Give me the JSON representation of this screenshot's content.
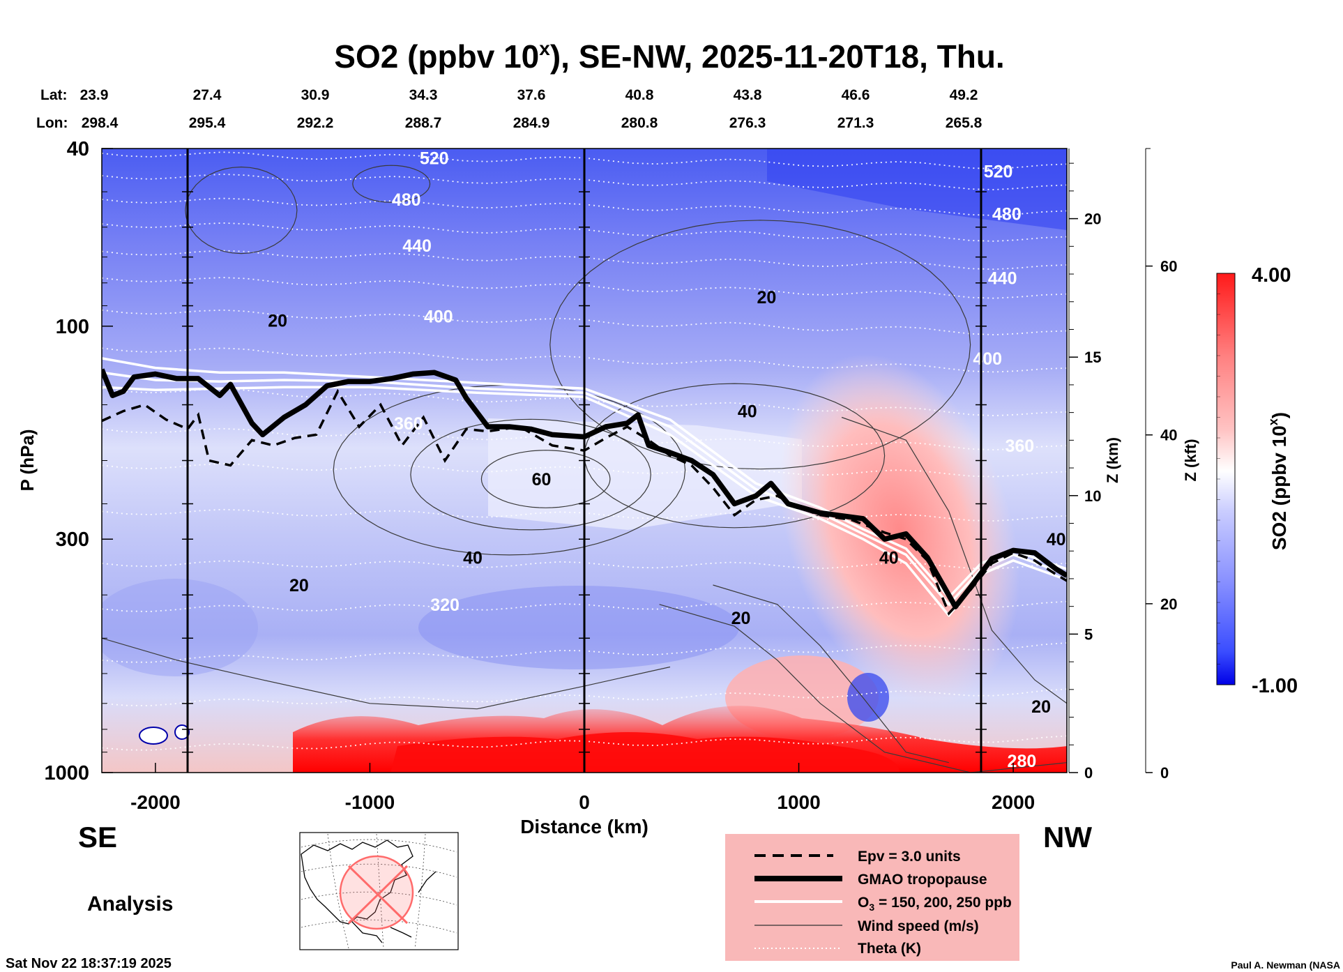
{
  "chart_data": {
    "type": "heatmap",
    "title_prefix": "SO2 (ppbv 10",
    "title_exp": "x",
    "title_suffix": "), SE-NW, 2025-11-20T18, Thu.",
    "lat_label": "Lat:",
    "lon_label": "Lon:",
    "lat_values": [
      "23.9",
      "27.4",
      "30.9",
      "34.3",
      "37.6",
      "40.8",
      "43.8",
      "46.6",
      "49.2"
    ],
    "lon_values": [
      "298.4",
      "295.4",
      "292.2",
      "288.7",
      "284.9",
      "280.8",
      "276.3",
      "271.3",
      "265.8"
    ],
    "xlabel": "Distance (km)",
    "ylabel": "P (hPa)",
    "xlim": [
      -2250,
      2250
    ],
    "ylim_hpa": [
      1000,
      40
    ],
    "x_ticks": [
      -2000,
      -1000,
      0,
      1000,
      2000
    ],
    "x_tick_labels": [
      "-2000",
      "-1000",
      "0",
      "1000",
      "2000"
    ],
    "p_ticks": [
      1000,
      300,
      100,
      40
    ],
    "p_tick_labels": [
      "1000",
      "300",
      "100",
      "40"
    ],
    "z_km_label": "Z (km)",
    "z_km_ticks": [
      0,
      5,
      10,
      15,
      20
    ],
    "z_km_tick_labels": [
      "0",
      "5",
      "10",
      "15",
      "20"
    ],
    "z_kft_label": "Z (kft)",
    "z_kft_ticks": [
      0,
      20,
      40,
      60
    ],
    "z_kft_tick_labels": [
      "0",
      "20",
      "40",
      "60"
    ],
    "vertical_marker_distances": [
      -1850,
      0,
      1850
    ],
    "colorbar": {
      "label_prefix": "SO2 (ppbv 10",
      "label_exp": "x",
      "label_suffix": ")",
      "max": 4.0,
      "min": -1.0,
      "max_label": "4.00",
      "min_label": "-1.00",
      "colors": [
        "#0000e6",
        "#3a4dff",
        "#8890ff",
        "#c9ccff",
        "#ffffff",
        "#ffc3c3",
        "#ff8080",
        "#ff1a1a"
      ]
    },
    "theta_contour_labels": [
      {
        "text": "520",
        "x": -700,
        "p": 42
      },
      {
        "text": "480",
        "x": -830,
        "p": 52
      },
      {
        "text": "440",
        "x": -780,
        "p": 66
      },
      {
        "text": "400",
        "x": -680,
        "p": 95
      },
      {
        "text": "360",
        "x": -820,
        "p": 165
      },
      {
        "text": "320",
        "x": -650,
        "p": 420
      },
      {
        "text": "520",
        "x": 1930,
        "p": 45
      },
      {
        "text": "480",
        "x": 1970,
        "p": 56
      },
      {
        "text": "440",
        "x": 1950,
        "p": 78
      },
      {
        "text": "400",
        "x": 1880,
        "p": 118
      },
      {
        "text": "360",
        "x": 2030,
        "p": 185
      },
      {
        "text": "280",
        "x": 2040,
        "p": 940
      }
    ],
    "wind_contour_labels": [
      {
        "text": "20",
        "x": -1430,
        "p": 97
      },
      {
        "text": "20",
        "x": 850,
        "p": 86
      },
      {
        "text": "40",
        "x": 760,
        "p": 155
      },
      {
        "text": "60",
        "x": -200,
        "p": 220
      },
      {
        "text": "40",
        "x": -520,
        "p": 330
      },
      {
        "text": "20",
        "x": -1330,
        "p": 380
      },
      {
        "text": "20",
        "x": 730,
        "p": 450
      },
      {
        "text": "40",
        "x": 1420,
        "p": 330
      },
      {
        "text": "40",
        "x": 2200,
        "p": 300
      },
      {
        "text": "20",
        "x": 2130,
        "p": 710
      }
    ],
    "wind_speed_isotachs_ms": [
      20,
      40,
      60
    ],
    "gmao_tropopause": [
      {
        "x": -2250,
        "p": 125
      },
      {
        "x": -2200,
        "p": 143
      },
      {
        "x": -2150,
        "p": 140
      },
      {
        "x": -2100,
        "p": 130
      },
      {
        "x": -2000,
        "p": 128
      },
      {
        "x": -1900,
        "p": 131
      },
      {
        "x": -1800,
        "p": 131
      },
      {
        "x": -1700,
        "p": 143
      },
      {
        "x": -1650,
        "p": 135
      },
      {
        "x": -1550,
        "p": 165
      },
      {
        "x": -1500,
        "p": 175
      },
      {
        "x": -1400,
        "p": 160
      },
      {
        "x": -1300,
        "p": 150
      },
      {
        "x": -1200,
        "p": 136
      },
      {
        "x": -1100,
        "p": 133
      },
      {
        "x": -1000,
        "p": 133
      },
      {
        "x": -900,
        "p": 131
      },
      {
        "x": -800,
        "p": 128
      },
      {
        "x": -700,
        "p": 127
      },
      {
        "x": -600,
        "p": 132
      },
      {
        "x": -550,
        "p": 145
      },
      {
        "x": -450,
        "p": 168
      },
      {
        "x": -350,
        "p": 168
      },
      {
        "x": -250,
        "p": 170
      },
      {
        "x": -150,
        "p": 175
      },
      {
        "x": 0,
        "p": 177
      },
      {
        "x": 100,
        "p": 168
      },
      {
        "x": 200,
        "p": 165
      },
      {
        "x": 250,
        "p": 158
      },
      {
        "x": 300,
        "p": 185
      },
      {
        "x": 400,
        "p": 192
      },
      {
        "x": 500,
        "p": 200
      },
      {
        "x": 600,
        "p": 215
      },
      {
        "x": 700,
        "p": 250
      },
      {
        "x": 800,
        "p": 240
      },
      {
        "x": 870,
        "p": 225
      },
      {
        "x": 950,
        "p": 250
      },
      {
        "x": 1100,
        "p": 262
      },
      {
        "x": 1300,
        "p": 270
      },
      {
        "x": 1400,
        "p": 300
      },
      {
        "x": 1500,
        "p": 292
      },
      {
        "x": 1600,
        "p": 330
      },
      {
        "x": 1730,
        "p": 425
      },
      {
        "x": 1800,
        "p": 385
      },
      {
        "x": 1900,
        "p": 332
      },
      {
        "x": 2000,
        "p": 318
      },
      {
        "x": 2100,
        "p": 322
      },
      {
        "x": 2200,
        "p": 350
      },
      {
        "x": 2250,
        "p": 362
      }
    ],
    "epv_3pvu": [
      {
        "x": -2250,
        "p": 163
      },
      {
        "x": -2150,
        "p": 155
      },
      {
        "x": -2050,
        "p": 150
      },
      {
        "x": -1950,
        "p": 162
      },
      {
        "x": -1850,
        "p": 170
      },
      {
        "x": -1800,
        "p": 158
      },
      {
        "x": -1750,
        "p": 200
      },
      {
        "x": -1650,
        "p": 205
      },
      {
        "x": -1550,
        "p": 180
      },
      {
        "x": -1450,
        "p": 185
      },
      {
        "x": -1350,
        "p": 178
      },
      {
        "x": -1250,
        "p": 175
      },
      {
        "x": -1150,
        "p": 140
      },
      {
        "x": -1050,
        "p": 168
      },
      {
        "x": -950,
        "p": 150
      },
      {
        "x": -850,
        "p": 185
      },
      {
        "x": -750,
        "p": 160
      },
      {
        "x": -650,
        "p": 200
      },
      {
        "x": -550,
        "p": 170
      },
      {
        "x": -450,
        "p": 172
      },
      {
        "x": -300,
        "p": 168
      },
      {
        "x": -150,
        "p": 185
      },
      {
        "x": 0,
        "p": 190
      },
      {
        "x": 100,
        "p": 178
      },
      {
        "x": 200,
        "p": 168
      },
      {
        "x": 300,
        "p": 180
      },
      {
        "x": 400,
        "p": 195
      },
      {
        "x": 500,
        "p": 205
      },
      {
        "x": 600,
        "p": 230
      },
      {
        "x": 700,
        "p": 265
      },
      {
        "x": 800,
        "p": 245
      },
      {
        "x": 900,
        "p": 240
      },
      {
        "x": 1000,
        "p": 255
      },
      {
        "x": 1100,
        "p": 265
      },
      {
        "x": 1250,
        "p": 272
      },
      {
        "x": 1400,
        "p": 290
      },
      {
        "x": 1500,
        "p": 300
      },
      {
        "x": 1600,
        "p": 335
      },
      {
        "x": 1700,
        "p": 440
      },
      {
        "x": 1800,
        "p": 390
      },
      {
        "x": 1900,
        "p": 340
      },
      {
        "x": 2000,
        "p": 322
      },
      {
        "x": 2100,
        "p": 335
      },
      {
        "x": 2200,
        "p": 360
      },
      {
        "x": 2250,
        "p": 372
      }
    ],
    "ozone_ppb_contours": [
      {
        "level": 150,
        "points": [
          {
            "x": -2250,
            "p": 118
          },
          {
            "x": -2000,
            "p": 124
          },
          {
            "x": -1700,
            "p": 127
          },
          {
            "x": -1400,
            "p": 127
          },
          {
            "x": -1000,
            "p": 130
          },
          {
            "x": -500,
            "p": 134
          },
          {
            "x": 0,
            "p": 138
          },
          {
            "x": 400,
            "p": 162
          },
          {
            "x": 800,
            "p": 225
          },
          {
            "x": 1100,
            "p": 255
          },
          {
            "x": 1300,
            "p": 285
          },
          {
            "x": 1500,
            "p": 315
          },
          {
            "x": 1700,
            "p": 405
          },
          {
            "x": 1850,
            "p": 340
          },
          {
            "x": 2000,
            "p": 318
          },
          {
            "x": 2250,
            "p": 350
          }
        ]
      },
      {
        "level": 200,
        "points": [
          {
            "x": -2250,
            "p": 127
          },
          {
            "x": -2000,
            "p": 132
          },
          {
            "x": -1700,
            "p": 133
          },
          {
            "x": -1400,
            "p": 132
          },
          {
            "x": -1000,
            "p": 133
          },
          {
            "x": -500,
            "p": 138
          },
          {
            "x": 0,
            "p": 141
          },
          {
            "x": 400,
            "p": 168
          },
          {
            "x": 800,
            "p": 232
          },
          {
            "x": 1100,
            "p": 262
          },
          {
            "x": 1300,
            "p": 292
          },
          {
            "x": 1500,
            "p": 325
          },
          {
            "x": 1700,
            "p": 420
          },
          {
            "x": 1850,
            "p": 350
          },
          {
            "x": 2000,
            "p": 325
          },
          {
            "x": 2250,
            "p": 360
          }
        ]
      },
      {
        "level": 250,
        "points": [
          {
            "x": -2250,
            "p": 137
          },
          {
            "x": -2000,
            "p": 139
          },
          {
            "x": -1700,
            "p": 138
          },
          {
            "x": -1400,
            "p": 137
          },
          {
            "x": -1000,
            "p": 137
          },
          {
            "x": -500,
            "p": 141
          },
          {
            "x": 0,
            "p": 144
          },
          {
            "x": 400,
            "p": 175
          },
          {
            "x": 800,
            "p": 240
          },
          {
            "x": 1100,
            "p": 270
          },
          {
            "x": 1300,
            "p": 300
          },
          {
            "x": 1500,
            "p": 340
          },
          {
            "x": 1700,
            "p": 445
          },
          {
            "x": 1850,
            "p": 360
          },
          {
            "x": 2000,
            "p": 335
          },
          {
            "x": 2250,
            "p": 370
          }
        ]
      }
    ],
    "legend": {
      "epv": "Epv = 3.0 units",
      "tropopause": "GMAO tropopause",
      "ozone_prefix": "O",
      "ozone_sub": "3",
      "ozone_suffix": " = 150, 200, 250 ppb",
      "wind": "Wind speed (m/s)",
      "theta": "Theta (K)"
    },
    "left_direction": "SE",
    "right_direction": "NW",
    "analysis_label": "Analysis",
    "timestamp": "Sat Nov 22 18:37:19 2025",
    "credit": "Paul A. Newman (NASA"
  }
}
